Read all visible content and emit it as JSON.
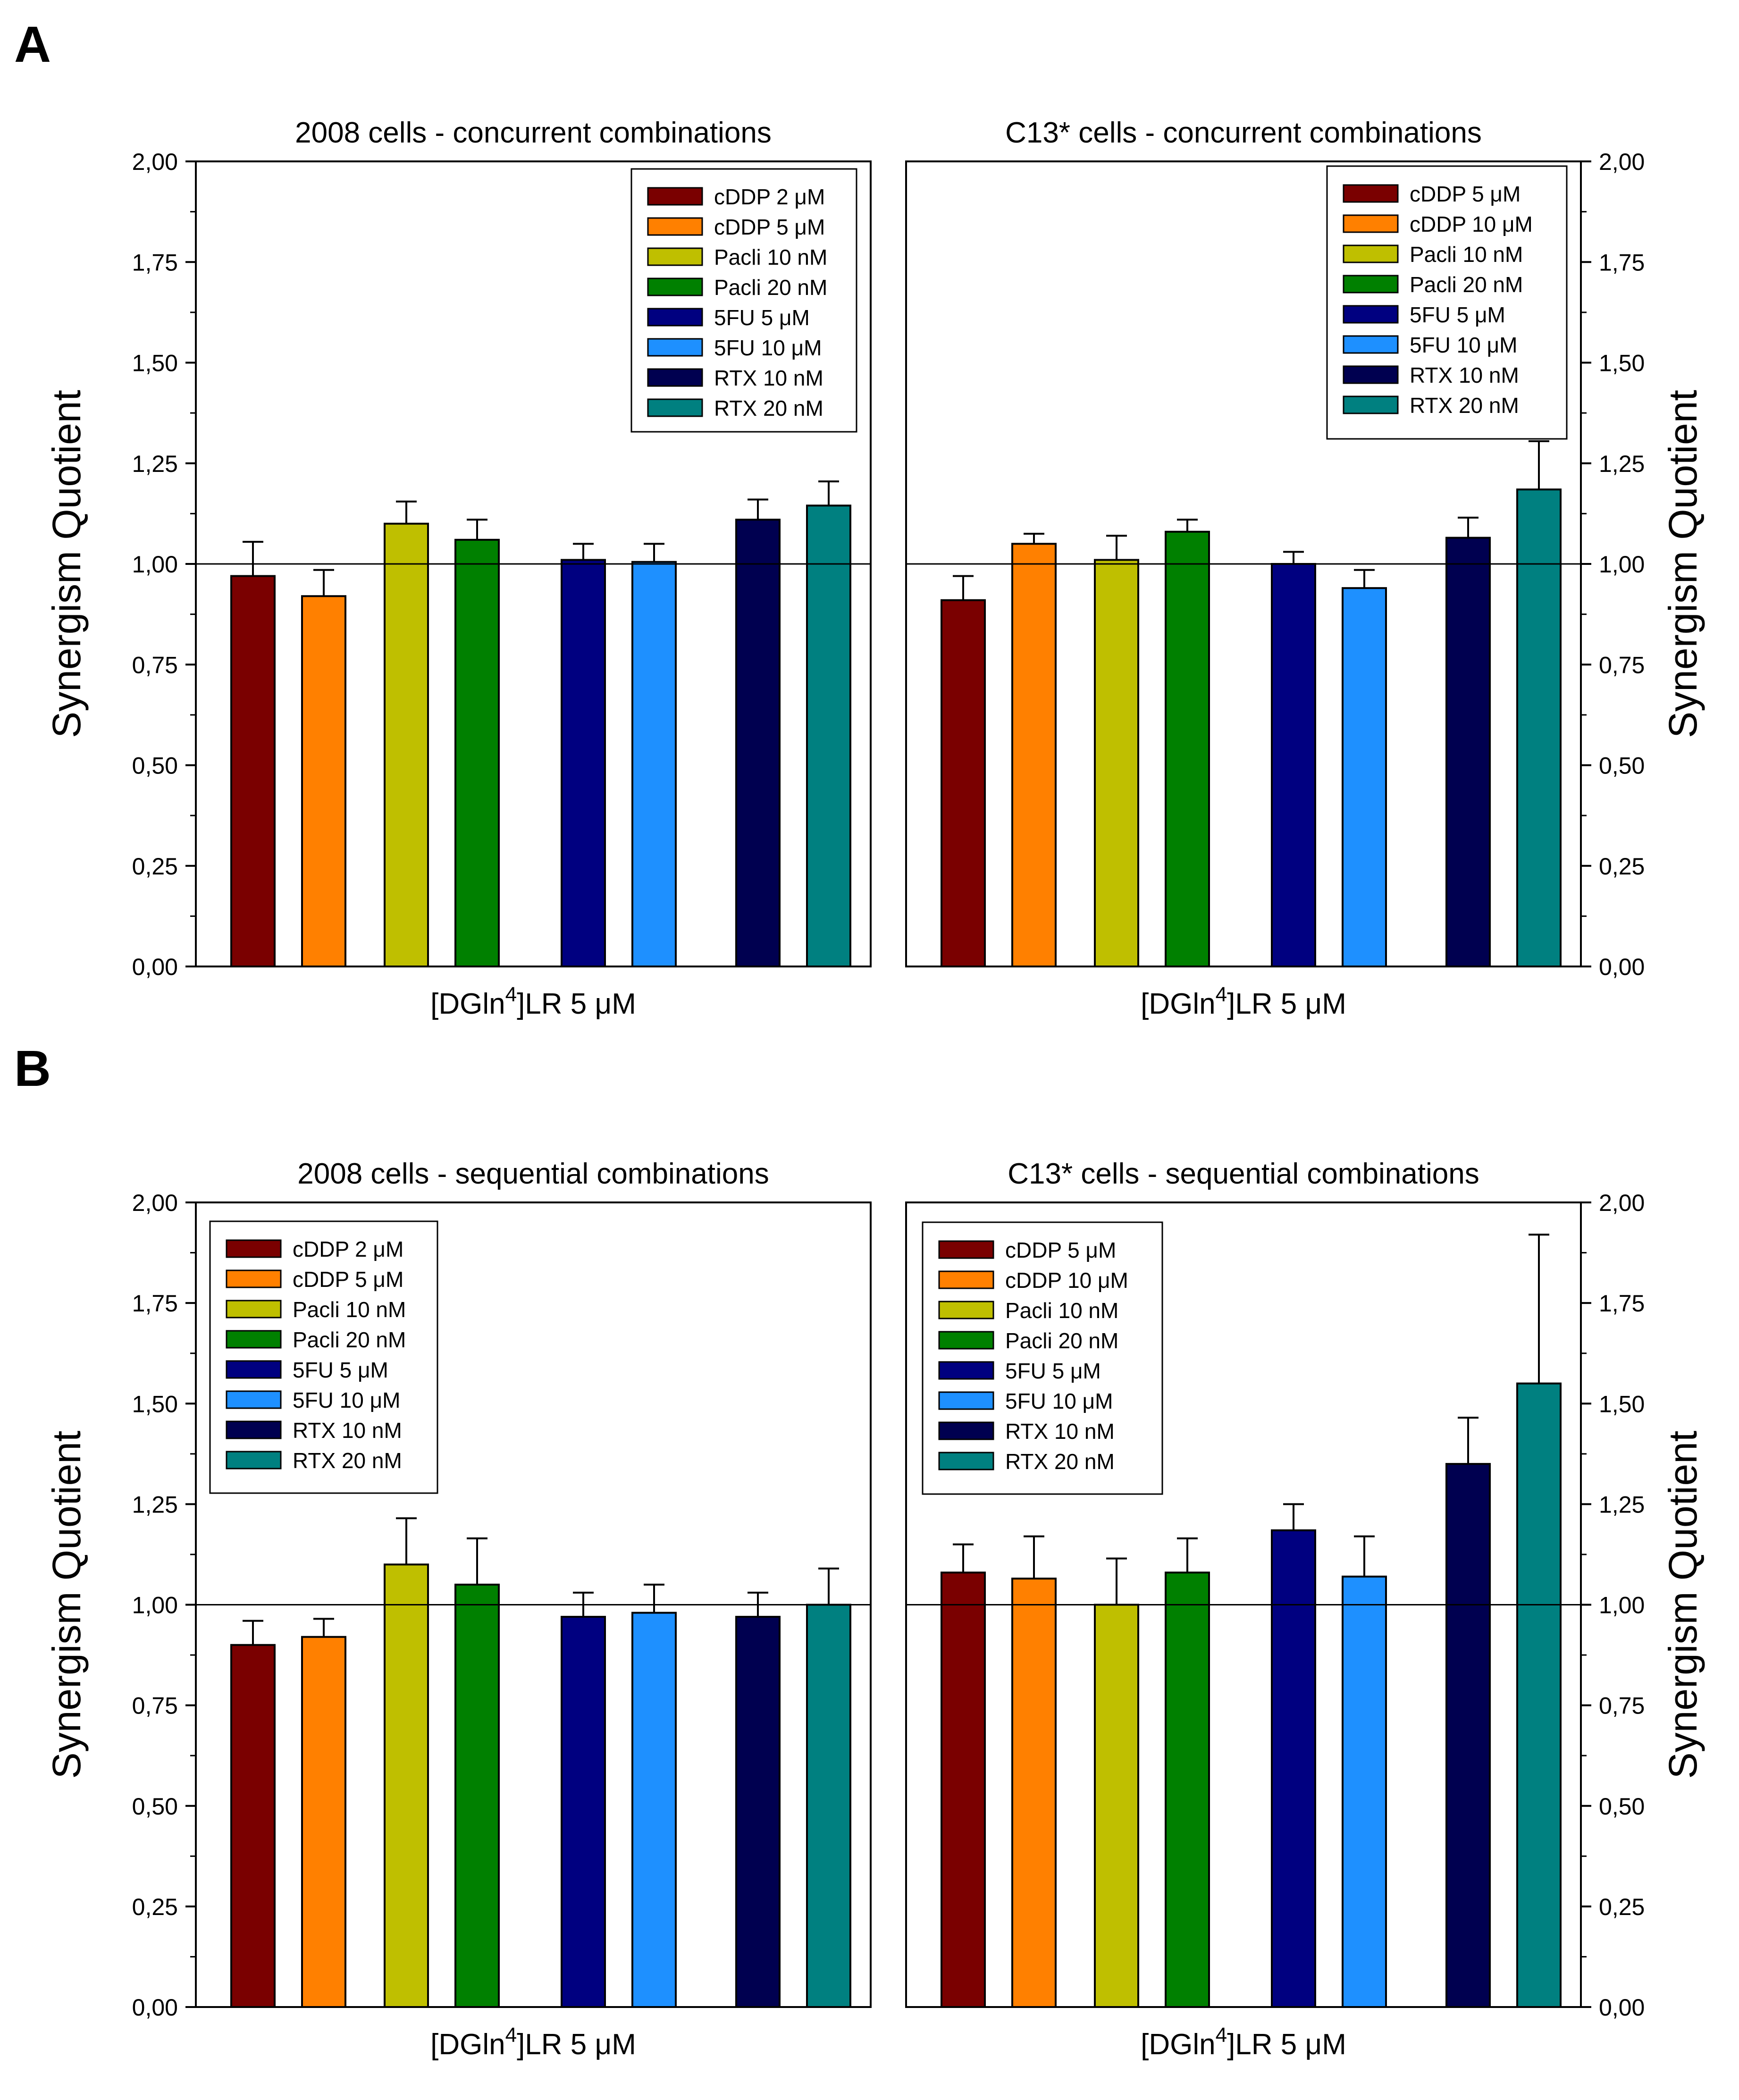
{
  "figure": {
    "panel_labels": [
      "A",
      "B"
    ],
    "x_group_label_prefix": "[DGln",
    "x_group_label_sup": "4",
    "x_group_label_suffix": "]LR 5 μM"
  },
  "colors": {
    "dark_red": "#7a0000",
    "orange": "#ff8000",
    "olive": "#bfbf00",
    "green": "#008000",
    "navy": "#000080",
    "light_blue": "#1e90ff",
    "midnight": "#000050",
    "teal": "#008080"
  },
  "chart_data": [
    {
      "type": "bar",
      "panel": "A",
      "title": "2008 cells - concurrent combinations",
      "xlabel": "[DGln4]LR 5 μM",
      "ylabel": "Synergism Quotient",
      "ylabel_side": "left",
      "ylim": [
        0,
        2
      ],
      "yticks": [
        "0,00",
        "0,25",
        "0,50",
        "0,75",
        "1,00",
        "1,25",
        "1,50",
        "1,75",
        "2,00"
      ],
      "reference_line": 1,
      "legend_position": "top-right",
      "categories": [
        "cDDP 2 μM",
        "cDDP 5 μM",
        "Pacli 10 nM",
        "Pacli 20 nM",
        "5FU 5 μM",
        "5FU 10 μM",
        "RTX 10 nM",
        "RTX 20 nM"
      ],
      "values": [
        0.97,
        0.92,
        1.1,
        1.06,
        1.01,
        1.005,
        1.11,
        1.145
      ],
      "errors": [
        0.085,
        0.065,
        0.055,
        0.05,
        0.04,
        0.045,
        0.05,
        0.06
      ],
      "colors": [
        "#7a0000",
        "#ff8000",
        "#bfbf00",
        "#008000",
        "#000080",
        "#1e90ff",
        "#000050",
        "#008080"
      ]
    },
    {
      "type": "bar",
      "panel": "A",
      "title": "C13* cells - concurrent combinations",
      "xlabel": "[DGln4]LR 5 μM",
      "ylabel": "Synergism Quotient",
      "ylabel_side": "right",
      "ylim": [
        0,
        2
      ],
      "yticks": [
        "0,00",
        "0,25",
        "0,50",
        "0,75",
        "1,00",
        "1,25",
        "1,50",
        "1,75",
        "2,00"
      ],
      "reference_line": 1,
      "legend_position": "top-right",
      "categories": [
        "cDDP 5 μM",
        "cDDP 10 μM",
        "Pacli 10 nM",
        "Pacli 20 nM",
        "5FU 5 μM",
        "5FU 10 μM",
        "RTX 10 nM",
        "RTX 20 nM"
      ],
      "values": [
        0.91,
        1.05,
        1.01,
        1.08,
        1.0,
        0.94,
        1.065,
        1.185
      ],
      "errors": [
        0.06,
        0.025,
        0.06,
        0.03,
        0.03,
        0.045,
        0.05,
        0.12
      ],
      "colors": [
        "#7a0000",
        "#ff8000",
        "#bfbf00",
        "#008000",
        "#000080",
        "#1e90ff",
        "#000050",
        "#008080"
      ]
    },
    {
      "type": "bar",
      "panel": "B",
      "title": "2008 cells - sequential combinations",
      "xlabel": "[DGln4]LR 5 μM",
      "ylabel": "Synergism Quotient",
      "ylabel_side": "left",
      "ylim": [
        0,
        2
      ],
      "yticks": [
        "0,00",
        "0,25",
        "0,50",
        "0,75",
        "1,00",
        "1,25",
        "1,50",
        "1,75",
        "2,00"
      ],
      "reference_line": 1,
      "legend_position": "top-left",
      "categories": [
        "cDDP 2 μM",
        "cDDP 5 μM",
        "Pacli 10 nM",
        "Pacli 20 nM",
        "5FU 5 μM",
        "5FU 10 μM",
        "RTX 10 nM",
        "RTX 20 nM"
      ],
      "values": [
        0.9,
        0.92,
        1.1,
        1.05,
        0.97,
        0.98,
        0.97,
        1.0
      ],
      "errors": [
        0.06,
        0.045,
        0.115,
        0.115,
        0.06,
        0.07,
        0.06,
        0.09
      ],
      "colors": [
        "#7a0000",
        "#ff8000",
        "#bfbf00",
        "#008000",
        "#000080",
        "#1e90ff",
        "#000050",
        "#008080"
      ]
    },
    {
      "type": "bar",
      "panel": "B",
      "title": "C13* cells - sequential combinations",
      "xlabel": "[DGln4]LR 5 μM",
      "ylabel": "Synergism Quotient",
      "ylabel_side": "right",
      "ylim": [
        0,
        2
      ],
      "yticks": [
        "0,00",
        "0,25",
        "0,50",
        "0,75",
        "1,00",
        "1,25",
        "1,50",
        "1,75",
        "2,00"
      ],
      "reference_line": 1,
      "legend_position": "top-left",
      "categories": [
        "cDDP 5 μM",
        "cDDP 10 μM",
        "Pacli 10 nM",
        "Pacli 20 nM",
        "5FU 5 μM",
        "5FU 10 μM",
        "RTX 10 nM",
        "RTX 20 nM"
      ],
      "values": [
        1.08,
        1.065,
        1.0,
        1.08,
        1.185,
        1.07,
        1.35,
        1.55
      ],
      "errors": [
        0.07,
        0.105,
        0.115,
        0.085,
        0.065,
        0.1,
        0.115,
        0.37
      ],
      "colors": [
        "#7a0000",
        "#ff8000",
        "#bfbf00",
        "#008000",
        "#000080",
        "#1e90ff",
        "#000050",
        "#008080"
      ]
    }
  ]
}
